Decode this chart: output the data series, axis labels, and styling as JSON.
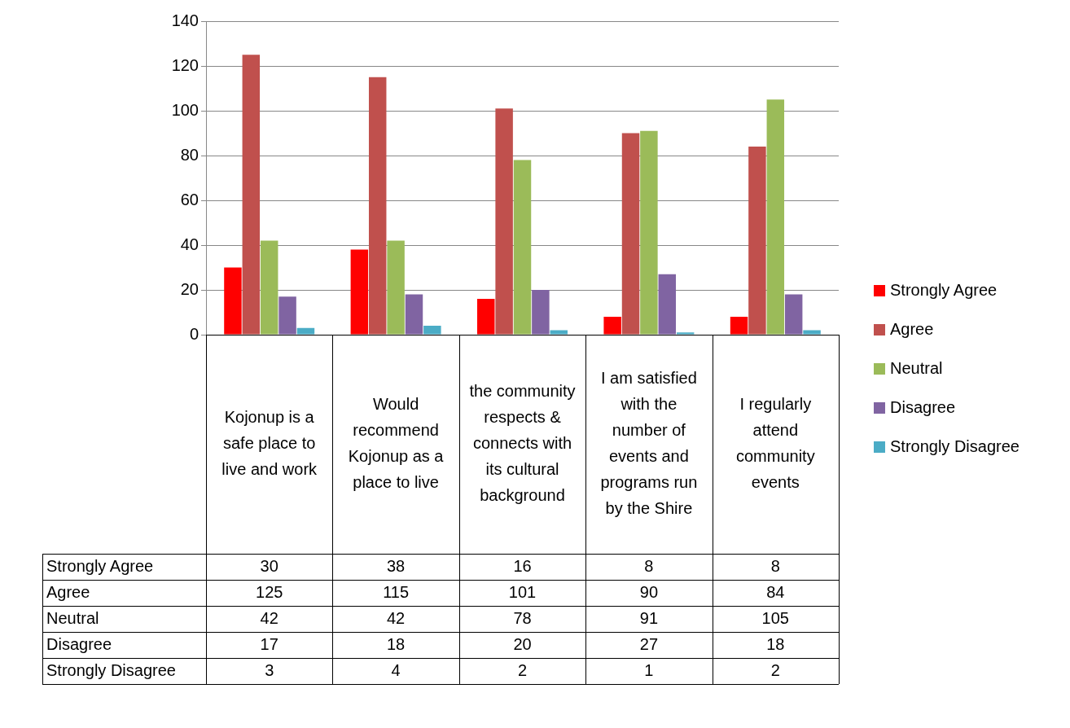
{
  "chart_data": {
    "type": "bar",
    "categories": [
      "Kojonup is a safe place to live and work",
      "Would recommend Kojonup as a place to live",
      "the community respects & connects with its cultural background",
      "I am satisfied with the number of events and programs run by the Shire",
      "I regularly attend community events"
    ],
    "series": [
      {
        "name": "Strongly Agree",
        "color": "#ff0000",
        "values": [
          30,
          38,
          16,
          8,
          8
        ]
      },
      {
        "name": "Agree",
        "color": "#c0504d",
        "values": [
          125,
          115,
          101,
          90,
          84
        ]
      },
      {
        "name": "Neutral",
        "color": "#9bbb59",
        "values": [
          42,
          42,
          78,
          91,
          105
        ]
      },
      {
        "name": "Disagree",
        "color": "#8064a2",
        "values": [
          17,
          18,
          20,
          27,
          18
        ]
      },
      {
        "name": "Strongly Disagree",
        "color": "#4bacc6",
        "values": [
          3,
          4,
          2,
          1,
          2
        ]
      }
    ],
    "ylim": [
      0,
      140
    ],
    "yticks": [
      0,
      20,
      40,
      60,
      80,
      100,
      120,
      140
    ],
    "grid": "y",
    "legend": "right",
    "data_labels": true
  }
}
